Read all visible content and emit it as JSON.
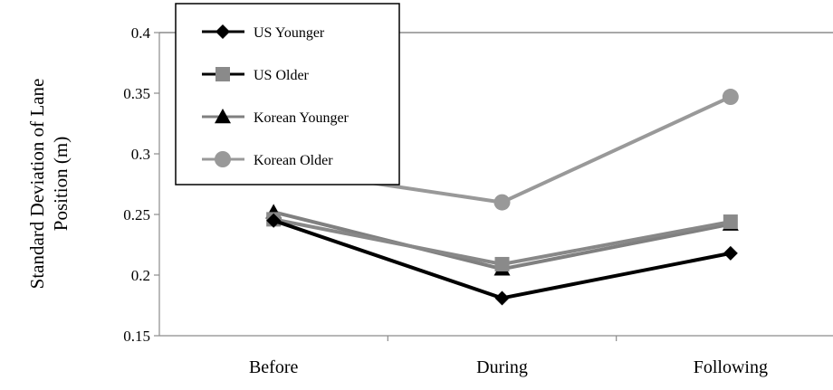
{
  "chart_data": {
    "type": "line",
    "title": "",
    "xlabel": "",
    "ylabel_lines": [
      "Standard Deviation of Lane",
      "Position (m)"
    ],
    "categories": [
      "Before",
      "During",
      "Following"
    ],
    "ylim": [
      0.15,
      0.4
    ],
    "yticks": [
      "0.15",
      "0.2",
      "0.25",
      "0.3",
      "0.35",
      "0.4"
    ],
    "ytick_values": [
      0.15,
      0.2,
      0.25,
      0.3,
      0.35,
      0.4
    ],
    "grid": "horizontal gridline at 0.4 only",
    "legend_position": "top-left",
    "series": [
      {
        "name": "US Younger",
        "values": [
          0.245,
          0.181,
          0.218
        ],
        "color": "#000000",
        "marker": "diamond"
      },
      {
        "name": "US Older",
        "values": [
          0.246,
          0.209,
          0.244
        ],
        "color": "#888888",
        "marker": "square"
      },
      {
        "name": "Korean Younger",
        "values": [
          0.252,
          0.205,
          0.242
        ],
        "color": "#7f7f7f",
        "marker": "triangle"
      },
      {
        "name": "Korean Older",
        "values": [
          0.288,
          0.26,
          0.347
        ],
        "color": "#999999",
        "marker": "circle"
      }
    ]
  }
}
